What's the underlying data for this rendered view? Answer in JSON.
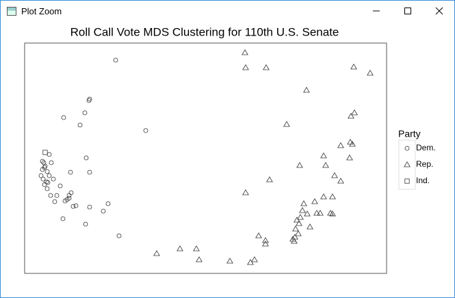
{
  "window": {
    "title": "Plot Zoom"
  },
  "chart_data": {
    "type": "scatter",
    "title": "Roll Call Vote MDS Clustering for 110th U.S. Senate",
    "xlim": [
      0,
      529
    ],
    "ylim": [
      0,
      337
    ],
    "legend_title": "Party",
    "legend": "right",
    "series": [
      {
        "name": "Dem.",
        "marker": "circle",
        "color": "#333333",
        "x": [
          133,
          95,
          94,
          88,
          57,
          81,
          177,
          90,
          26,
          36,
          28,
          29,
          39,
          26,
          33,
          24,
          36,
          67,
          95,
          34,
          42,
          29,
          52,
          68,
          33,
          38,
          47,
          65,
          62,
          71,
          44,
          75,
          59,
          95,
          122,
          115,
          56,
          89,
          138,
          32,
          27,
          30,
          65
        ],
        "values": [
          312,
          255,
          253,
          235,
          228,
          217,
          209,
          169,
          164,
          174,
          162,
          155,
          162,
          152,
          149,
          143,
          143,
          148,
          148,
          133,
          138,
          130,
          128,
          118,
          124,
          114,
          114,
          114,
          108,
          98,
          105,
          99,
          106,
          97,
          102,
          91,
          80,
          72,
          55,
          134,
          138,
          157,
          110
        ]
      },
      {
        "name": "Rep.",
        "marker": "triangle",
        "color": "#333333",
        "x": [
          322,
          323,
          353,
          481,
          505,
          412,
          482,
          477,
          383,
          462,
          476,
          479,
          437,
          475,
          402,
          440,
          453,
          462,
          358,
          323,
          437,
          450,
          424,
          408,
          406,
          432,
          427,
          447,
          450,
          413,
          403,
          398,
          401,
          417,
          396,
          400,
          395,
          392,
          342,
          352,
          352,
          394,
          251,
          227,
          193,
          255,
          300,
          336,
          330
        ],
        "values": [
          323,
          301,
          301,
          302,
          293,
          268,
          235,
          230,
          218,
          187,
          192,
          189,
          172,
          169,
          158,
          158,
          143,
          135,
          137,
          118,
          112,
          112,
          105,
          102,
          92,
          88,
          88,
          88,
          87,
          87,
          82,
          78,
          73,
          68,
          65,
          58,
          53,
          50,
          55,
          48,
          43,
          47,
          36,
          36,
          29,
          20,
          18,
          20,
          16
        ]
      },
      {
        "name": "Ind.",
        "marker": "square",
        "color": "#333333",
        "x": [
          30
        ],
        "values": [
          177
        ]
      }
    ]
  }
}
